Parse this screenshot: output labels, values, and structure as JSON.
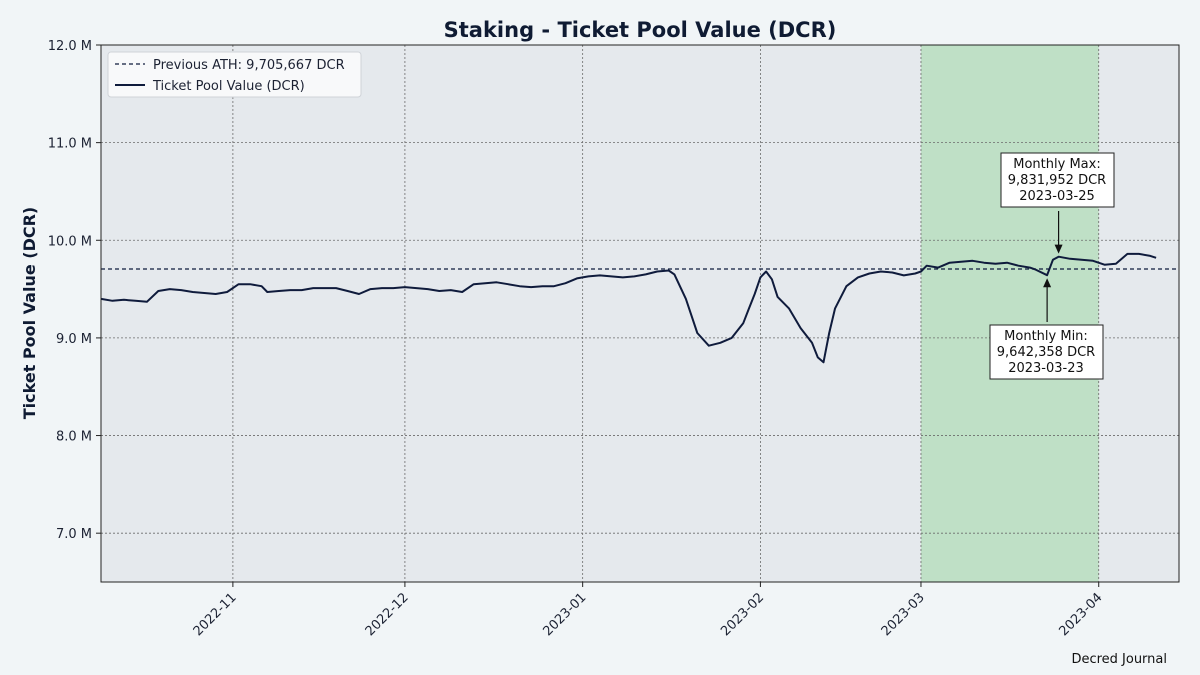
{
  "chart_data": {
    "type": "line",
    "title": "Staking - Ticket Pool Value (DCR)",
    "xlabel": "",
    "ylabel": "Ticket Pool Value (DCR)",
    "xlim": [
      "2022-10-09",
      "2023-04-15"
    ],
    "ylim": [
      6500000,
      12000000
    ],
    "y_ticks": [
      {
        "value": 7000000,
        "label": "7.0 M"
      },
      {
        "value": 8000000,
        "label": "8.0 M"
      },
      {
        "value": 9000000,
        "label": "9.0 M"
      },
      {
        "value": 10000000,
        "label": "10.0 M"
      },
      {
        "value": 11000000,
        "label": "11.0 M"
      },
      {
        "value": 12000000,
        "label": "12.0 M"
      }
    ],
    "x_ticks": [
      {
        "value": "2022-11-01",
        "label": "2022-11"
      },
      {
        "value": "2022-12-01",
        "label": "2022-12"
      },
      {
        "value": "2023-01-01",
        "label": "2023-01"
      },
      {
        "value": "2023-02-01",
        "label": "2023-02"
      },
      {
        "value": "2023-03-01",
        "label": "2023-03"
      },
      {
        "value": "2023-04-01",
        "label": "2023-04"
      }
    ],
    "grid": true,
    "legend_position": "top-left",
    "highlight_range": {
      "start": "2023-03-01",
      "end": "2023-04-01",
      "color": "#bfe0c6"
    },
    "reference_line": {
      "name": "Previous ATH: 9,705,667 DCR",
      "value": 9705667,
      "style": "dashed",
      "color": "#0f1b3c"
    },
    "series": [
      {
        "name": "Ticket Pool Value (DCR)",
        "color": "#0f1b3c",
        "points": [
          [
            "2022-10-09",
            9400000
          ],
          [
            "2022-10-11",
            9380000
          ],
          [
            "2022-10-13",
            9390000
          ],
          [
            "2022-10-15",
            9380000
          ],
          [
            "2022-10-17",
            9370000
          ],
          [
            "2022-10-19",
            9480000
          ],
          [
            "2022-10-21",
            9500000
          ],
          [
            "2022-10-23",
            9490000
          ],
          [
            "2022-10-25",
            9470000
          ],
          [
            "2022-10-27",
            9460000
          ],
          [
            "2022-10-29",
            9450000
          ],
          [
            "2022-10-31",
            9470000
          ],
          [
            "2022-11-02",
            9550000
          ],
          [
            "2022-11-04",
            9550000
          ],
          [
            "2022-11-06",
            9530000
          ],
          [
            "2022-11-07",
            9470000
          ],
          [
            "2022-11-09",
            9480000
          ],
          [
            "2022-11-11",
            9490000
          ],
          [
            "2022-11-13",
            9490000
          ],
          [
            "2022-11-15",
            9510000
          ],
          [
            "2022-11-17",
            9510000
          ],
          [
            "2022-11-19",
            9510000
          ],
          [
            "2022-11-21",
            9480000
          ],
          [
            "2022-11-23",
            9450000
          ],
          [
            "2022-11-25",
            9500000
          ],
          [
            "2022-11-27",
            9510000
          ],
          [
            "2022-11-29",
            9510000
          ],
          [
            "2022-12-01",
            9520000
          ],
          [
            "2022-12-03",
            9510000
          ],
          [
            "2022-12-05",
            9500000
          ],
          [
            "2022-12-07",
            9480000
          ],
          [
            "2022-12-09",
            9490000
          ],
          [
            "2022-12-11",
            9470000
          ],
          [
            "2022-12-13",
            9550000
          ],
          [
            "2022-12-15",
            9560000
          ],
          [
            "2022-12-17",
            9570000
          ],
          [
            "2022-12-19",
            9550000
          ],
          [
            "2022-12-21",
            9530000
          ],
          [
            "2022-12-23",
            9520000
          ],
          [
            "2022-12-25",
            9530000
          ],
          [
            "2022-12-27",
            9530000
          ],
          [
            "2022-12-29",
            9560000
          ],
          [
            "2022-12-31",
            9610000
          ],
          [
            "2023-01-02",
            9630000
          ],
          [
            "2023-01-04",
            9640000
          ],
          [
            "2023-01-06",
            9630000
          ],
          [
            "2023-01-08",
            9620000
          ],
          [
            "2023-01-10",
            9630000
          ],
          [
            "2023-01-12",
            9650000
          ],
          [
            "2023-01-14",
            9680000
          ],
          [
            "2023-01-16",
            9690000
          ],
          [
            "2023-01-17",
            9650000
          ],
          [
            "2023-01-19",
            9400000
          ],
          [
            "2023-01-21",
            9050000
          ],
          [
            "2023-01-23",
            8920000
          ],
          [
            "2023-01-25",
            8950000
          ],
          [
            "2023-01-27",
            9000000
          ],
          [
            "2023-01-29",
            9150000
          ],
          [
            "2023-01-30",
            9300000
          ],
          [
            "2023-01-31",
            9450000
          ],
          [
            "2023-02-01",
            9620000
          ],
          [
            "2023-02-02",
            9680000
          ],
          [
            "2023-02-03",
            9600000
          ],
          [
            "2023-02-04",
            9420000
          ],
          [
            "2023-02-06",
            9300000
          ],
          [
            "2023-02-08",
            9100000
          ],
          [
            "2023-02-10",
            8950000
          ],
          [
            "2023-02-11",
            8800000
          ],
          [
            "2023-02-12",
            8750000
          ],
          [
            "2023-02-13",
            9050000
          ],
          [
            "2023-02-14",
            9300000
          ],
          [
            "2023-02-16",
            9530000
          ],
          [
            "2023-02-18",
            9620000
          ],
          [
            "2023-02-20",
            9660000
          ],
          [
            "2023-02-22",
            9680000
          ],
          [
            "2023-02-24",
            9670000
          ],
          [
            "2023-02-26",
            9640000
          ],
          [
            "2023-02-28",
            9660000
          ],
          [
            "2023-03-01",
            9680000
          ],
          [
            "2023-03-02",
            9740000
          ],
          [
            "2023-03-04",
            9720000
          ],
          [
            "2023-03-06",
            9770000
          ],
          [
            "2023-03-08",
            9780000
          ],
          [
            "2023-03-10",
            9790000
          ],
          [
            "2023-03-12",
            9770000
          ],
          [
            "2023-03-14",
            9760000
          ],
          [
            "2023-03-16",
            9770000
          ],
          [
            "2023-03-18",
            9740000
          ],
          [
            "2023-03-20",
            9720000
          ],
          [
            "2023-03-21",
            9700000
          ],
          [
            "2023-03-23",
            9642358
          ],
          [
            "2023-03-24",
            9800000
          ],
          [
            "2023-03-25",
            9831952
          ],
          [
            "2023-03-27",
            9810000
          ],
          [
            "2023-03-29",
            9800000
          ],
          [
            "2023-03-31",
            9790000
          ],
          [
            "2023-04-02",
            9750000
          ],
          [
            "2023-04-04",
            9760000
          ],
          [
            "2023-04-06",
            9860000
          ],
          [
            "2023-04-08",
            9860000
          ],
          [
            "2023-04-10",
            9840000
          ],
          [
            "2023-04-11",
            9820000
          ]
        ]
      }
    ],
    "annotations": [
      {
        "id": "monthly-max",
        "lines": [
          "Monthly Max:",
          "9,831,952 DCR",
          "2023-03-25"
        ],
        "x": "2023-03-25",
        "y": 9831952,
        "box_position": "above"
      },
      {
        "id": "monthly-min",
        "lines": [
          "Monthly Min:",
          "9,642,358 DCR",
          "2023-03-23"
        ],
        "x": "2023-03-23",
        "y": 9642358,
        "box_position": "below"
      }
    ],
    "credit": "Decred Journal"
  }
}
